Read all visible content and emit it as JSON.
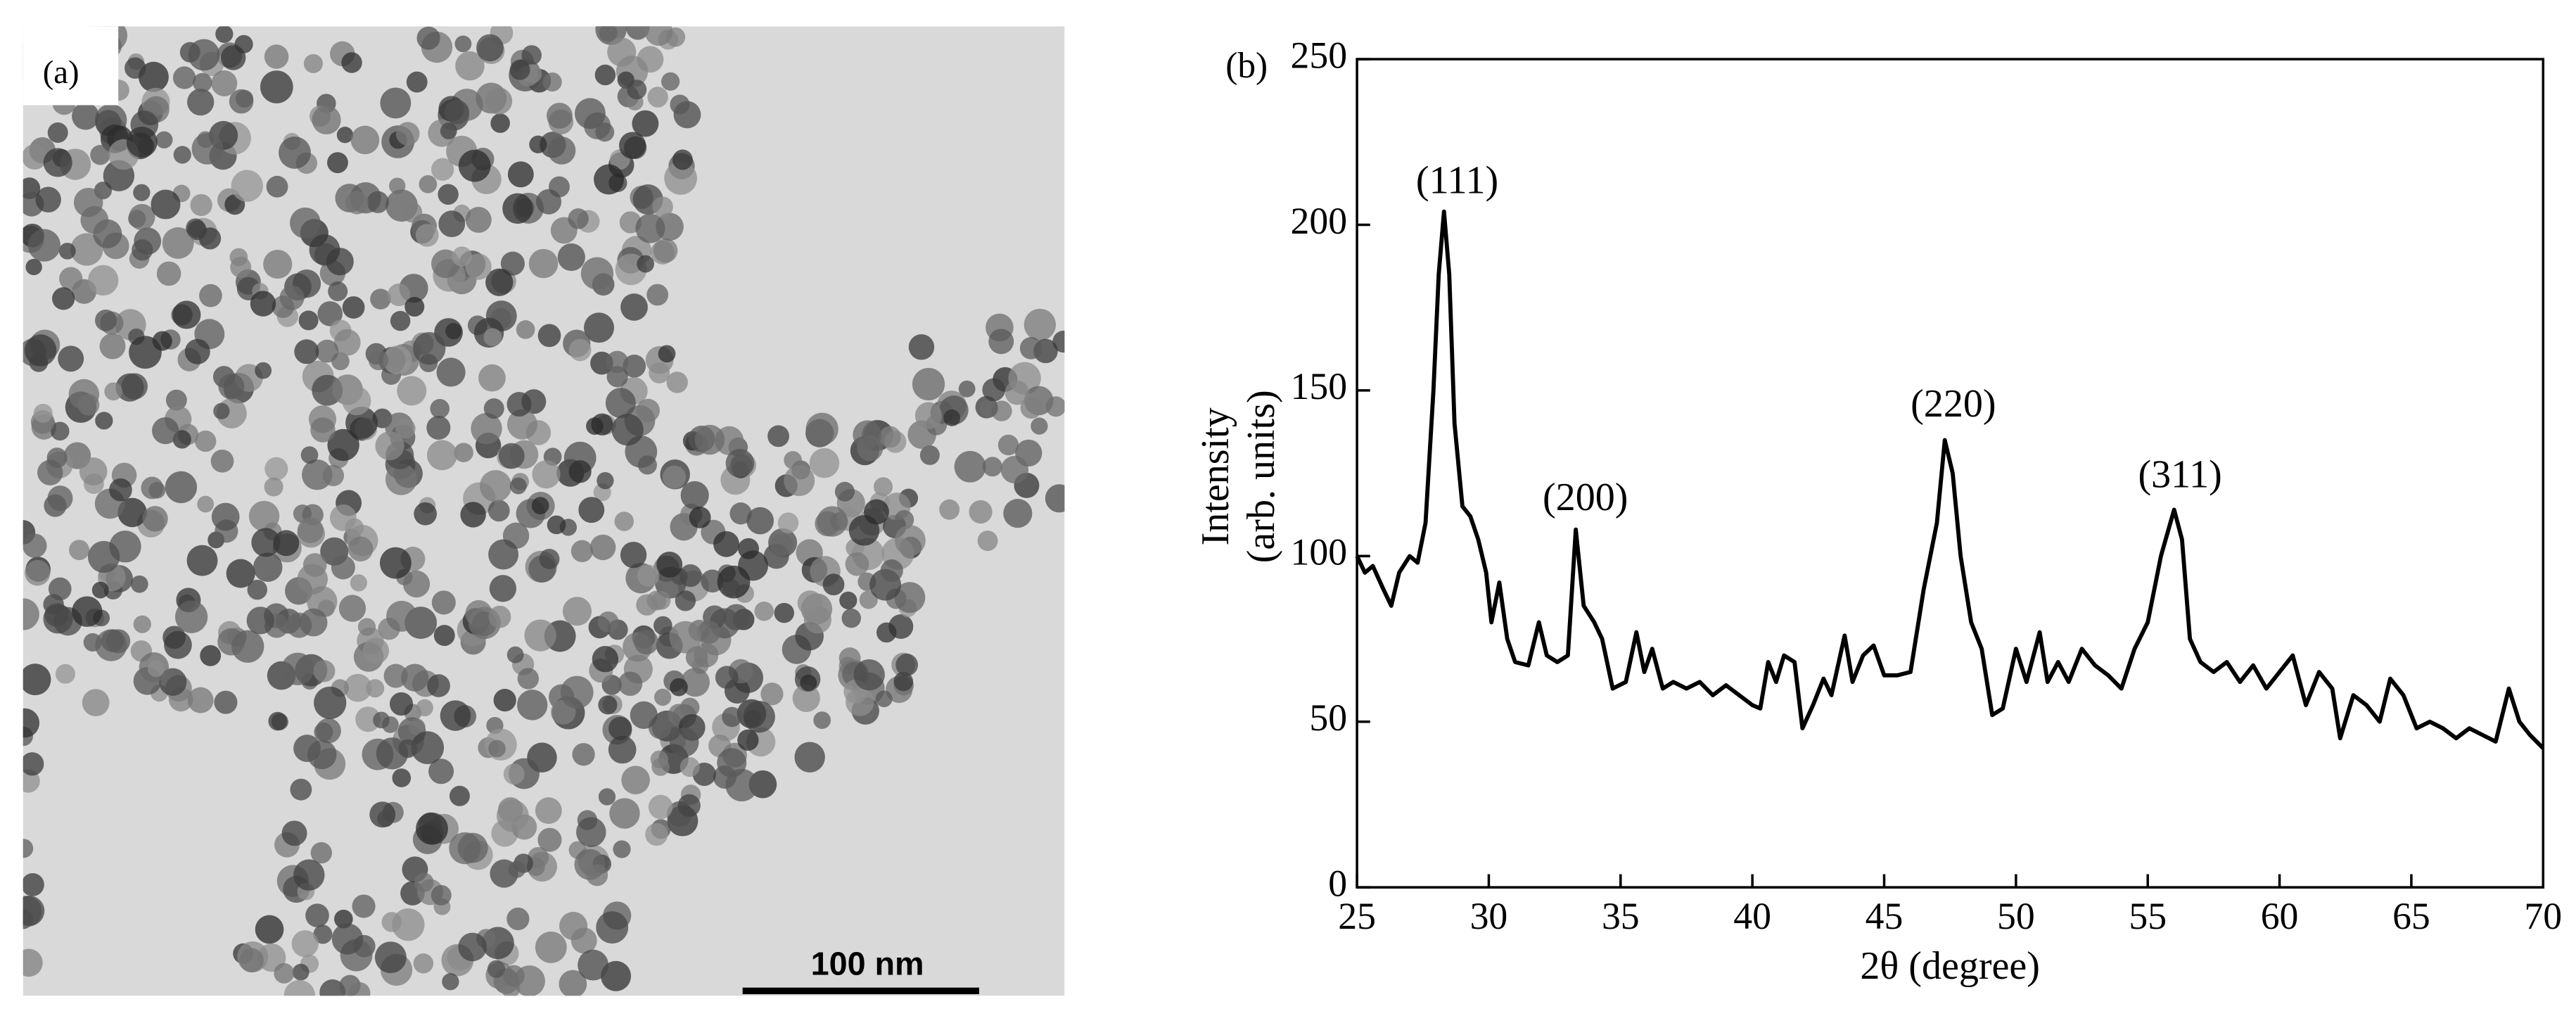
{
  "image_panel": {
    "label": "(a)",
    "scale_bar": "100 nm"
  },
  "chart_data": {
    "type": "line",
    "panel_label": "(b)",
    "xlabel": "2θ (degree)",
    "ylabel": [
      "Intensity",
      "(arb. units)"
    ],
    "annotations": [
      "(111)",
      "(200)",
      "(220)",
      "(311)"
    ],
    "x": [
      25,
      25.3,
      25.6,
      26,
      26.3,
      26.6,
      27,
      27.3,
      27.6,
      27.9,
      28.1,
      28.3,
      28.5,
      28.7,
      29,
      29.3,
      29.6,
      29.9,
      30.1,
      30.4,
      30.7,
      31,
      31.5,
      31.9,
      32.2,
      32.6,
      33,
      33.3,
      33.6,
      34,
      34.3,
      34.7,
      35.2,
      35.6,
      35.9,
      36.2,
      36.6,
      37,
      37.5,
      38,
      38.5,
      39,
      39.5,
      40,
      40.3,
      40.6,
      40.9,
      41.2,
      41.6,
      41.9,
      42.3,
      42.7,
      43,
      43.5,
      43.8,
      44.2,
      44.6,
      45,
      45.5,
      46,
      46.5,
      47,
      47.3,
      47.6,
      47.9,
      48.3,
      48.7,
      49.1,
      49.5,
      50,
      50.4,
      50.9,
      51.2,
      51.6,
      52,
      52.5,
      53,
      53.5,
      54,
      54.5,
      55,
      55.5,
      56,
      56.3,
      56.6,
      57,
      57.5,
      58,
      58.5,
      59,
      59.5,
      60,
      60.5,
      61,
      61.5,
      62,
      62.3,
      62.8,
      63.3,
      63.8,
      64.2,
      64.7,
      65.2,
      65.7,
      66.2,
      66.7,
      67.2,
      67.7,
      68.2,
      68.7,
      69.1,
      69.5,
      70
    ],
    "series": [
      {
        "color": "#000000",
        "values": [
          100,
          95,
          97,
          90,
          85,
          95,
          100,
          98,
          110,
          150,
          185,
          204,
          185,
          140,
          115,
          112,
          105,
          95,
          80,
          92,
          75,
          68,
          67,
          80,
          70,
          68,
          70,
          108,
          85,
          80,
          75,
          60,
          62,
          77,
          65,
          72,
          60,
          62,
          60,
          62,
          58,
          61,
          58,
          55,
          54,
          68,
          62,
          70,
          68,
          48,
          55,
          63,
          58,
          76,
          62,
          70,
          73,
          64,
          64,
          65,
          90,
          110,
          135,
          125,
          100,
          80,
          72,
          52,
          54,
          72,
          62,
          77,
          62,
          68,
          62,
          72,
          67,
          64,
          60,
          72,
          80,
          100,
          114,
          105,
          75,
          68,
          65,
          68,
          62,
          67,
          60,
          65,
          70,
          55,
          65,
          60,
          45,
          58,
          55,
          50,
          63,
          58,
          48,
          50,
          48,
          45,
          48,
          46,
          44,
          60,
          50,
          46,
          42
        ]
      }
    ],
    "xlim": [
      25,
      70
    ],
    "xticks": [
      25,
      30,
      35,
      40,
      45,
      50,
      55,
      60,
      65,
      70
    ],
    "ylim": [
      0,
      250
    ],
    "yticks": [
      0,
      50,
      100,
      150,
      200,
      250
    ]
  }
}
